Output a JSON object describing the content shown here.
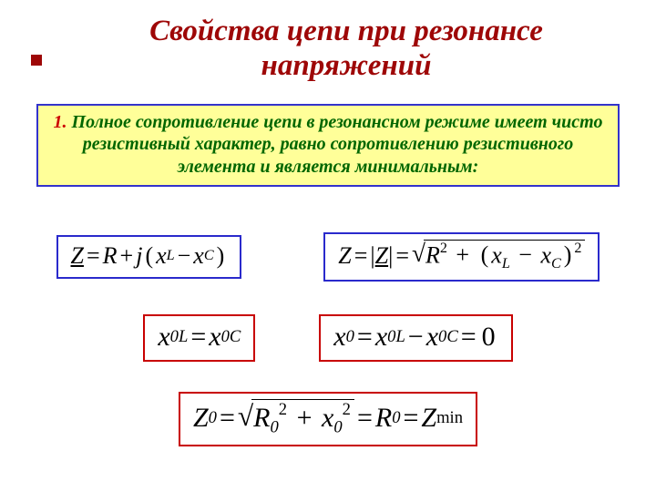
{
  "title": "Свойства цепи при резонансе напряжений",
  "colors": {
    "title": "#9e0707",
    "bullet": "#9e0707",
    "textbox_bg": "#ffff99",
    "textbox_border": "#3333cc",
    "textbox_text": "#006600",
    "textbox_number": "#cc0000",
    "border_blue": "#2a2acc",
    "border_red": "#c80000",
    "background": "#ffffff"
  },
  "fontsizes": {
    "title": 33,
    "textbox": 20,
    "equation": 26
  },
  "textbox": {
    "number": "1.",
    "text": "Полное сопротивление цепи в резонансном режиме имеет чисто резистивный характер, равно сопротивлению резистивного элемента и является минимальным:"
  },
  "equations": {
    "eq1": {
      "border": "blue",
      "Z": "Z",
      "eq": "=",
      "R": "R",
      "plus": "+",
      "j": "j",
      "lp": "(",
      "xL": "x",
      "xL_sub": "L",
      "minus": "−",
      "xC": "x",
      "xC_sub": "C",
      "rp": ")"
    },
    "eq2": {
      "border": "blue",
      "Z": "Z",
      "eq": "=",
      "bar_l": "|",
      "Zu": "Z",
      "bar_r": "|",
      "eq2": "=",
      "R": "R",
      "R_sup": "2",
      "plus": "+",
      "lp": "(",
      "xL": "x",
      "xL_sub": "L",
      "minus": "−",
      "xC": "x",
      "xC_sub": "C",
      "rp": ")",
      "sq_sup": "2"
    },
    "eq3": {
      "border": "red",
      "x1": "x",
      "x1_sub": "0L",
      "eq": "=",
      "x2": "x",
      "x2_sub": "0C"
    },
    "eq4": {
      "border": "red",
      "x0": "x",
      "x0_sub": "0",
      "eq": "=",
      "xL": "x",
      "xL_sub": "0L",
      "minus": "−",
      "xC": "x",
      "xC_sub": "0C",
      "eq2": "=",
      "zero": "0"
    },
    "eq5": {
      "border": "red",
      "Z0": "Z",
      "Z0_sub": "0",
      "eq": "=",
      "R0": "R",
      "R0_sub": "0",
      "R0_sup": "2",
      "plus": "+",
      "x0": "x",
      "x0_sub": "0",
      "x0_sup": "2",
      "eq2": "=",
      "R0b": "R",
      "R0b_sub": "0",
      "eq3": "=",
      "Zmin": "Z",
      "Zmin_sub": "min"
    }
  }
}
